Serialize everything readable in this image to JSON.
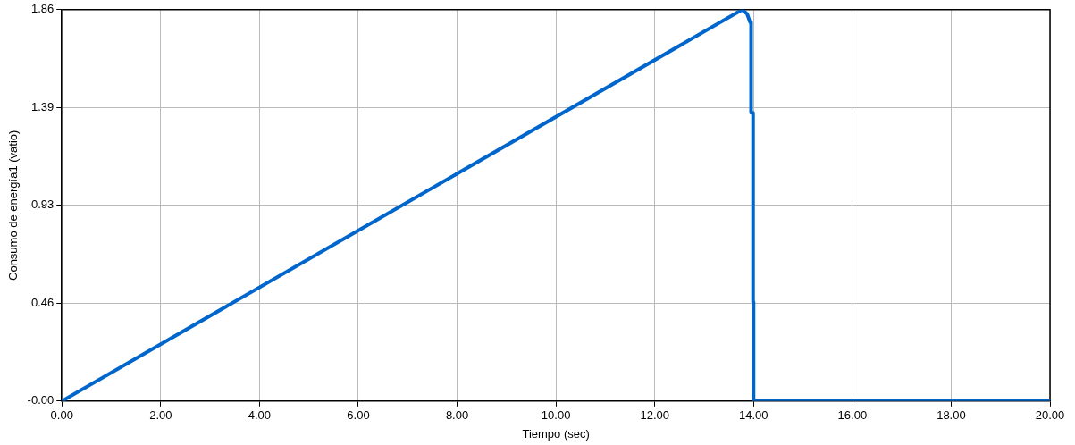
{
  "chart_data": {
    "type": "line",
    "xlabel": "Tiempo (sec)",
    "ylabel": "Consumo de energía1 (vatio)",
    "xlim": [
      0,
      20
    ],
    "xticks": [
      {
        "value": 0,
        "label": "0.00"
      },
      {
        "value": 2,
        "label": "2.00"
      },
      {
        "value": 4,
        "label": "4.00"
      },
      {
        "value": 6,
        "label": "6.00"
      },
      {
        "value": 8,
        "label": "8.00"
      },
      {
        "value": 10,
        "label": "10.00"
      },
      {
        "value": 12,
        "label": "12.00"
      },
      {
        "value": 14,
        "label": "14.00"
      },
      {
        "value": 16,
        "label": "16.00"
      },
      {
        "value": 18,
        "label": "18.00"
      },
      {
        "value": 20,
        "label": "20.00"
      }
    ],
    "ylim": [
      0,
      1.86
    ],
    "yticks": [
      {
        "value": 0,
        "label": "-0.00"
      },
      {
        "value": 0.465,
        "label": "0.46"
      },
      {
        "value": 0.93,
        "label": "0.93"
      },
      {
        "value": 1.395,
        "label": "1.39"
      },
      {
        "value": 1.86,
        "label": "1.86"
      }
    ],
    "grid": true,
    "marker": "none",
    "line_style": "solid",
    "series": [
      {
        "color": "#0066cc",
        "x": [
          0,
          13.77,
          13.87,
          13.93,
          13.95,
          13.95,
          13.99,
          13.99,
          14.0,
          14.0,
          20
        ],
        "values": [
          0,
          1.86,
          1.84,
          1.8,
          1.8,
          1.37,
          1.37,
          0.47,
          0.47,
          0,
          0
        ]
      }
    ]
  }
}
